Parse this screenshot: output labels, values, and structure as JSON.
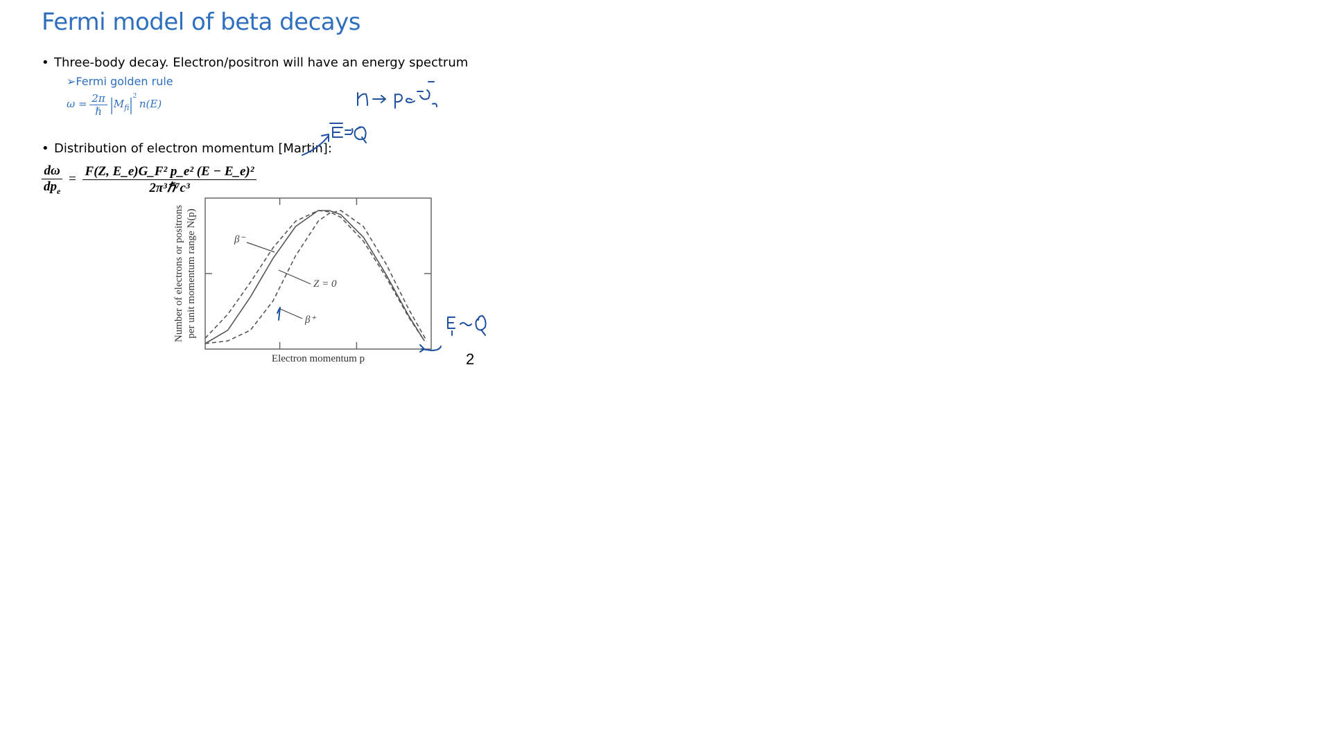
{
  "slide": {
    "title": "Fermi model of beta decays",
    "bullet1": "Three-body decay. Electron/positron will have an energy spectrum",
    "sub_bullet": "➢Fermi golden rule",
    "golden_rule": {
      "lhs": "ω =",
      "num": "2π",
      "den": "ℏ",
      "matrix": "M",
      "matrix_sub": "fi",
      "exponent": "2",
      "density": "n(E)"
    },
    "bullet2": "Distribution of electron momentum [Martin]:",
    "distribution": {
      "lhs_num": "dω",
      "lhs_den": "dp",
      "lhs_den_sub": "e",
      "eq": "=",
      "rhs_num": "F(Z, E_e)G_F² p_e² (E − E_e)²",
      "rhs_den": "2π³ℏ⁷c³"
    },
    "page_number": "2"
  },
  "chart_data": {
    "type": "line",
    "xlabel": "Electron momentum p",
    "ylabel_line1": "Number of electrons or positrons",
    "ylabel_line2": "per unit momentum range N(p)",
    "x_range": [
      0,
      1
    ],
    "y_range": [
      0,
      1
    ],
    "series": [
      {
        "name": "β⁻",
        "style": "dashed",
        "x": [
          0,
          0.1,
          0.2,
          0.3,
          0.4,
          0.5,
          0.55,
          0.6,
          0.7,
          0.8,
          0.9,
          0.97
        ],
        "y": [
          0.04,
          0.22,
          0.46,
          0.72,
          0.92,
          1.0,
          0.99,
          0.95,
          0.77,
          0.5,
          0.2,
          0.02
        ]
      },
      {
        "name": "Z = 0",
        "style": "solid",
        "x": [
          0,
          0.1,
          0.2,
          0.3,
          0.4,
          0.5,
          0.55,
          0.6,
          0.7,
          0.8,
          0.9,
          0.97
        ],
        "y": [
          0.0,
          0.1,
          0.35,
          0.64,
          0.88,
          1.0,
          1.0,
          0.97,
          0.8,
          0.52,
          0.21,
          0.02
        ]
      },
      {
        "name": "β⁺",
        "style": "dashed",
        "x": [
          0,
          0.1,
          0.2,
          0.3,
          0.4,
          0.5,
          0.55,
          0.6,
          0.7,
          0.8,
          0.9,
          0.98
        ],
        "y": [
          0.0,
          0.02,
          0.1,
          0.32,
          0.66,
          0.92,
          0.98,
          1.0,
          0.88,
          0.6,
          0.26,
          0.02
        ]
      }
    ],
    "annotations": [
      "β⁻",
      "Z = 0",
      "β⁺"
    ]
  },
  "colors": {
    "title": "#2e6fbf",
    "ink": "#1f4fa0",
    "curves": "#555555"
  }
}
